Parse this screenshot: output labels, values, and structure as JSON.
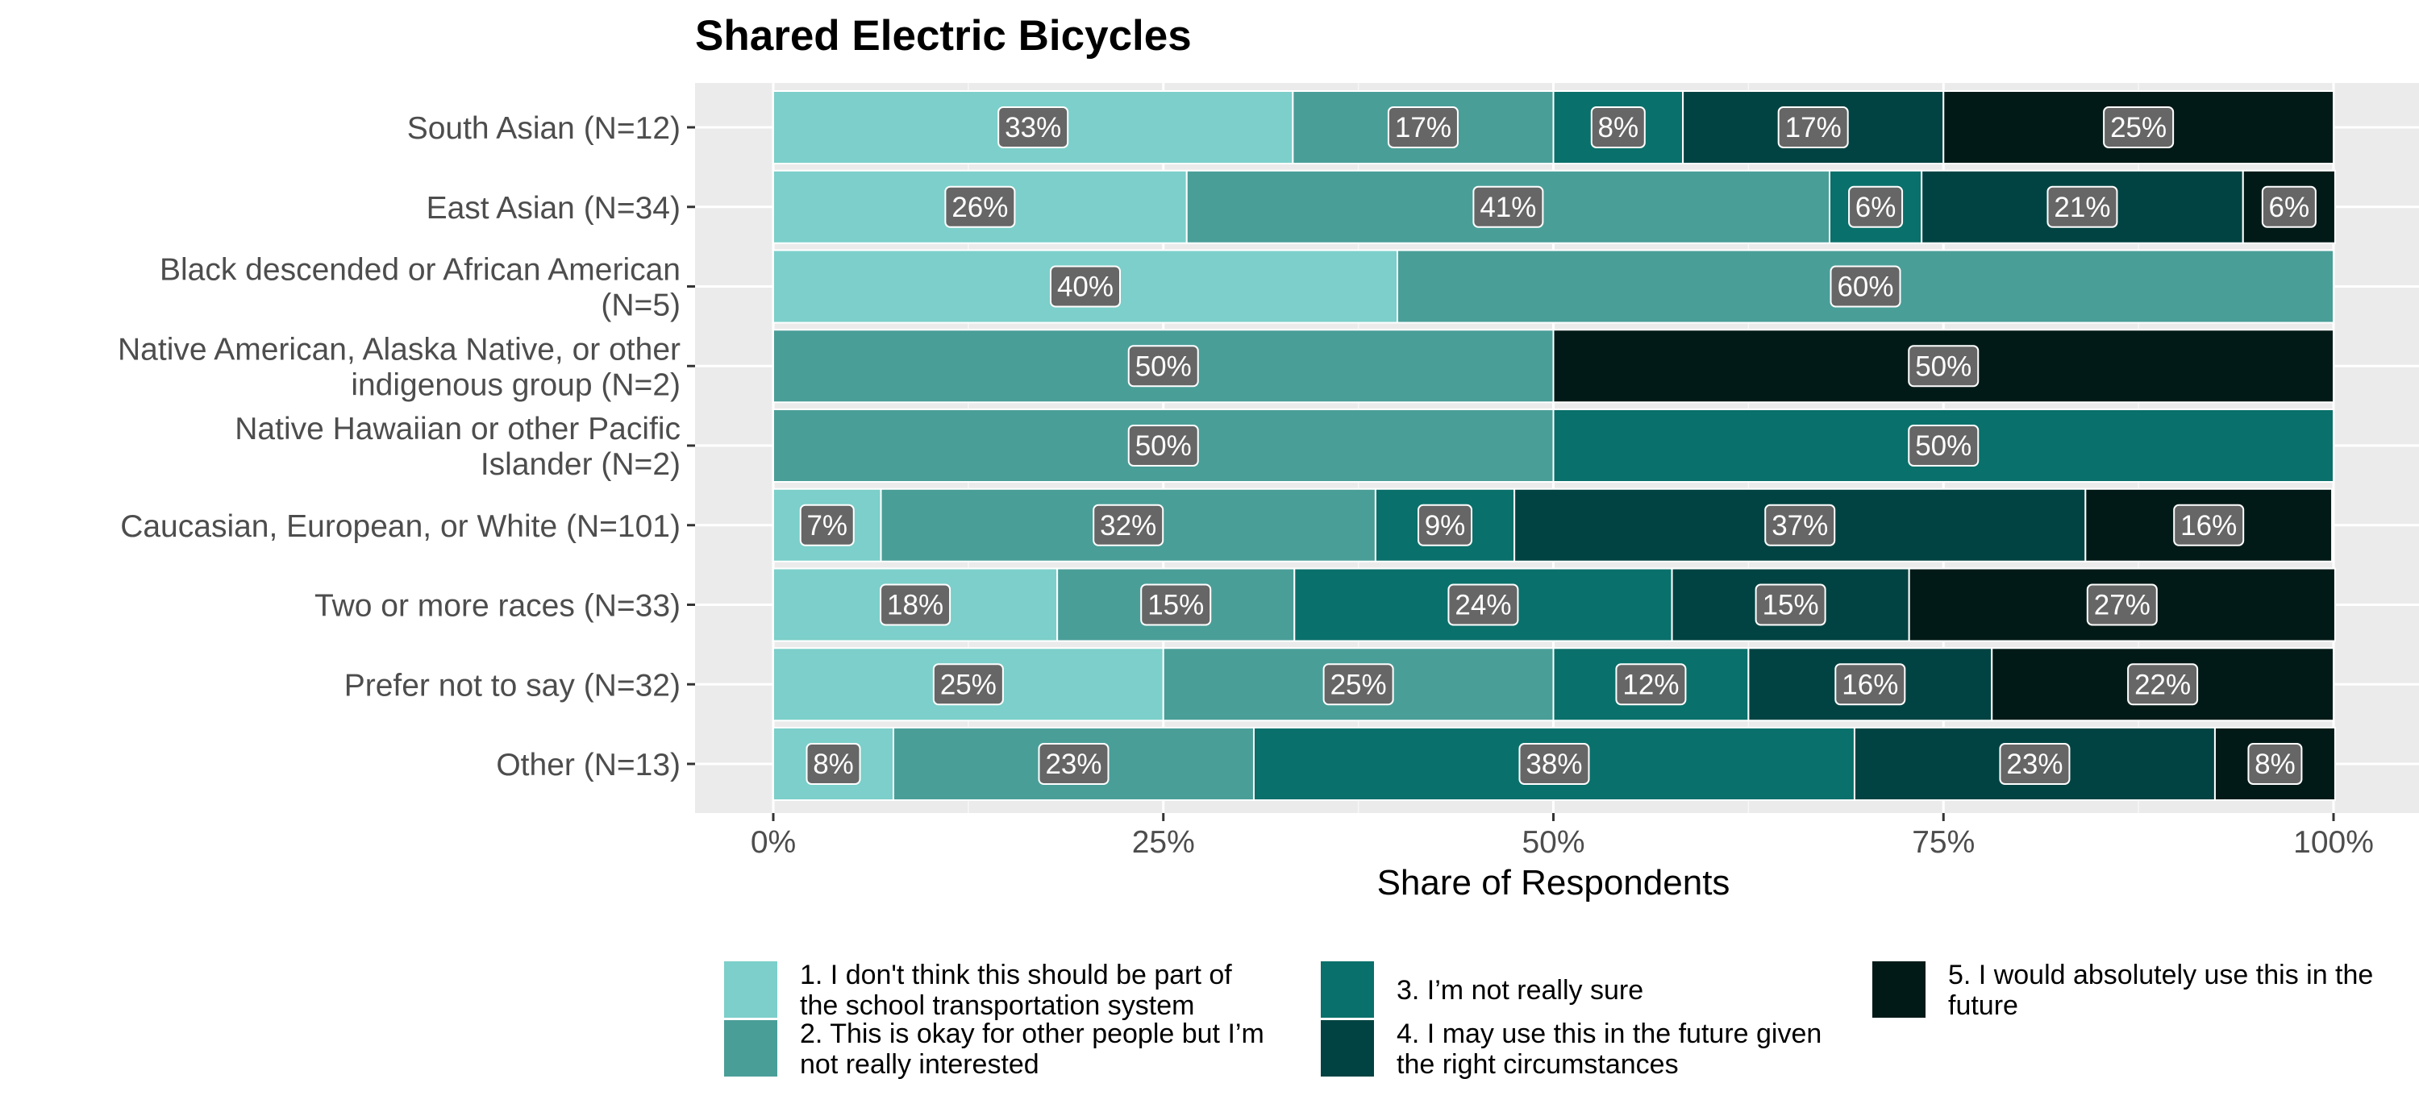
{
  "chart_data": {
    "type": "bar",
    "orientation": "horizontal",
    "stacked": true,
    "title": "Shared Electric Bicycles",
    "xlabel": "Share of Respondents",
    "ylabel": "",
    "xlim": [
      0,
      100
    ],
    "x_ticks": [
      "0%",
      "25%",
      "50%",
      "75%",
      "100%"
    ],
    "categories": [
      {
        "lines": [
          "South Asian (N=12)"
        ]
      },
      {
        "lines": [
          "East Asian (N=34)"
        ]
      },
      {
        "lines": [
          "Black descended or African American",
          "(N=5)"
        ]
      },
      {
        "lines": [
          "Native American, Alaska Native, or other",
          "indigenous group (N=2)"
        ]
      },
      {
        "lines": [
          "Native Hawaiian or other Pacific",
          "Islander (N=2)"
        ]
      },
      {
        "lines": [
          "Caucasian, European, or White (N=101)"
        ]
      },
      {
        "lines": [
          "Two or more races (N=33)"
        ]
      },
      {
        "lines": [
          "Prefer not to say (N=32)"
        ]
      },
      {
        "lines": [
          "Other (N=13)"
        ]
      }
    ],
    "series": [
      {
        "name": "1. I don't think this should be part of the school transportation system",
        "legend_lines": [
          "1. I don't think this should be part of",
          "the school transportation system"
        ],
        "color": "#7ccfca",
        "values": [
          33.3,
          26.5,
          40,
          0,
          0,
          6.9,
          18.2,
          25,
          7.7
        ],
        "labels": [
          "33%",
          "26%",
          "40%",
          "",
          "",
          "7%",
          "18%",
          "25%",
          "8%"
        ]
      },
      {
        "name": "2. This is okay for other people but I’m not really interested",
        "legend_lines": [
          "2. This is okay for other people but I’m",
          "not really interested"
        ],
        "color": "#4a9e98",
        "values": [
          16.7,
          41.2,
          60,
          50,
          50,
          31.7,
          15.2,
          25,
          23.1
        ],
        "labels": [
          "17%",
          "41%",
          "60%",
          "50%",
          "50%",
          "32%",
          "15%",
          "25%",
          "23%"
        ]
      },
      {
        "name": "3. I’m not really sure",
        "legend_lines": [
          "3. I’m not really sure"
        ],
        "color": "#0a706b",
        "values": [
          8.3,
          5.9,
          0,
          0,
          50,
          8.9,
          24.2,
          12.5,
          38.5
        ],
        "labels": [
          "8%",
          "6%",
          "",
          "",
          "50%",
          "9%",
          "24%",
          "12%",
          "38%"
        ]
      },
      {
        "name": "4. I may use this in the future given the right circumstances",
        "legend_lines": [
          "4. I may use this in the future given",
          "the right circumstances"
        ],
        "color": "#014342",
        "values": [
          16.7,
          20.6,
          0,
          0,
          0,
          36.6,
          15.2,
          15.6,
          23.1
        ],
        "labels": [
          "17%",
          "21%",
          "",
          "",
          "",
          "37%",
          "15%",
          "16%",
          "23%"
        ]
      },
      {
        "name": "5. I would absolutely use this in the future",
        "legend_lines": [
          "5. I would absolutely use this in the",
          "future"
        ],
        "color": "#021a17",
        "values": [
          25,
          5.9,
          0,
          50,
          0,
          15.8,
          27.3,
          21.9,
          7.7
        ],
        "labels": [
          "25%",
          "6%",
          "",
          "50%",
          "",
          "16%",
          "27%",
          "22%",
          "8%"
        ]
      }
    ],
    "grid": true,
    "panel_background": "#ebebeb",
    "label_box_color": "#666666",
    "legend_position": "bottom"
  }
}
